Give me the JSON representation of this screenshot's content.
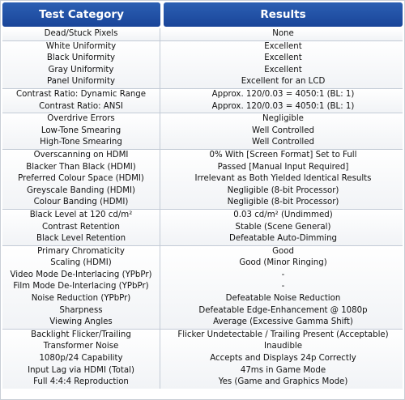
{
  "header": {
    "left": "Test Category",
    "right": "Results"
  },
  "groups": [
    {
      "rows": [
        {
          "category": "Dead/Stuck Pixels",
          "result": "None"
        }
      ]
    },
    {
      "rows": [
        {
          "category": "White Uniformity",
          "result": "Excellent"
        },
        {
          "category": "Black Uniformity",
          "result": "Excellent"
        },
        {
          "category": "Gray Uniformity",
          "result": "Excellent"
        },
        {
          "category": "Panel Uniformity",
          "result": "Excellent for an LCD"
        }
      ]
    },
    {
      "rows": [
        {
          "category": "Contrast Ratio: Dynamic Range",
          "result": "Approx. 120/0.03 = 4050:1 (BL: 1)"
        },
        {
          "category": "Contrast Ratio: ANSI",
          "result": "Approx. 120/0.03 = 4050:1 (BL: 1)"
        }
      ]
    },
    {
      "rows": [
        {
          "category": "Overdrive Errors",
          "result": "Negligible"
        },
        {
          "category": "Low-Tone Smearing",
          "result": "Well Controlled"
        },
        {
          "category": "High-Tone Smearing",
          "result": "Well Controlled"
        }
      ]
    },
    {
      "rows": [
        {
          "category": "Overscanning on HDMI",
          "result": "0% With [Screen Format] Set to Full"
        },
        {
          "category": "Blacker Than Black (HDMI)",
          "result": "Passed [Manual Input Required]"
        },
        {
          "category": "Preferred Colour Space (HDMI)",
          "result": "Irrelevant as Both Yielded Identical Results"
        },
        {
          "category": "Greyscale Banding (HDMI)",
          "result": "Negligible (8-bit Processor)"
        },
        {
          "category": "Colour Banding (HDMI)",
          "result": "Negligible (8-bit Processor)"
        }
      ]
    },
    {
      "rows": [
        {
          "category": "Black Level at 120 cd/m²",
          "result": "0.03 cd/m² (Undimmed)"
        },
        {
          "category": "Contrast Retention",
          "result": "Stable (Scene General)"
        },
        {
          "category": "Black Level Retention",
          "result": "Defeatable Auto-Dimming"
        }
      ]
    },
    {
      "rows": [
        {
          "category": "Primary Chromaticity",
          "result": "Good"
        },
        {
          "category": "Scaling (HDMI)",
          "result": "Good (Minor Ringing)"
        },
        {
          "category": "Video Mode De-Interlacing (YPbPr)",
          "result": "-"
        },
        {
          "category": "Film Mode De-Interlacing (YPbPr)",
          "result": "-"
        },
        {
          "category": "Noise Reduction (YPbPr)",
          "result": "Defeatable Noise Reduction"
        },
        {
          "category": "Sharpness",
          "result": "Defeatable Edge-Enhancement @ 1080p"
        },
        {
          "category": "Viewing Angles",
          "result": "Average (Excessive Gamma Shift)"
        }
      ]
    },
    {
      "rows": [
        {
          "category": "Backlight Flicker/Trailing",
          "result": "Flicker Undetectable / Trailing Present (Acceptable)"
        },
        {
          "category": "Transformer Noise",
          "result": "Inaudible"
        },
        {
          "category": "1080p/24 Capability",
          "result": "Accepts and Displays 24p Correctly"
        },
        {
          "category": "Input Lag via HDMI (Total)",
          "result": "47ms in Game Mode"
        },
        {
          "category": "Full 4:4:4 Reproduction",
          "result": "Yes (Game and Graphics Mode)"
        }
      ]
    }
  ]
}
